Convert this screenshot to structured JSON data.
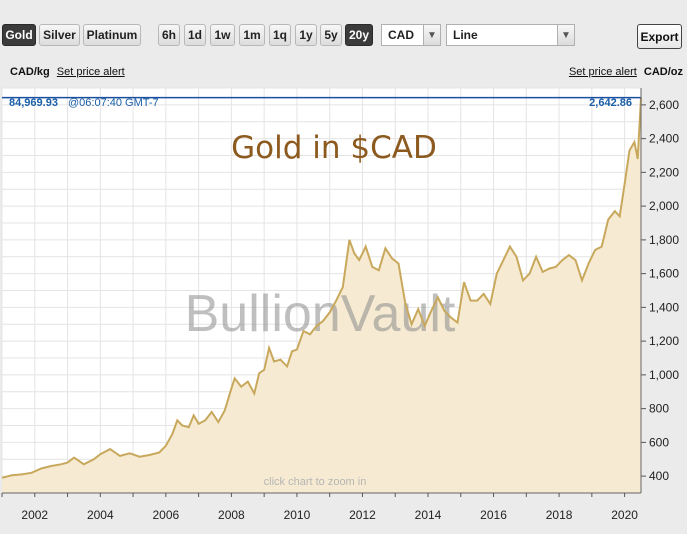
{
  "toolbar": {
    "metals": [
      {
        "label": "Gold",
        "active": true
      },
      {
        "label": "Silver",
        "active": false
      },
      {
        "label": "Platinum",
        "active": false
      }
    ],
    "ranges": [
      {
        "label": "6h",
        "active": false
      },
      {
        "label": "1d",
        "active": false
      },
      {
        "label": "1w",
        "active": false
      },
      {
        "label": "1m",
        "active": false
      },
      {
        "label": "1q",
        "active": false
      },
      {
        "label": "1y",
        "active": false
      },
      {
        "label": "5y",
        "active": false
      },
      {
        "label": "20y",
        "active": true
      }
    ],
    "currency": "CAD",
    "chart_style": "Line",
    "export_label": "Export"
  },
  "units": {
    "left_unit": "CAD/kg",
    "right_unit": "CAD/oz",
    "alert_left": "Set price alert",
    "alert_right": "Set price alert"
  },
  "readout": {
    "kg_price": "84,969.93",
    "time": "@06:07:40 GMT-7",
    "oz_price": "2,642.86"
  },
  "watermark": "BullionVault",
  "zoom_hint": "click chart to zoom in",
  "colors": {
    "line": "#c8a85c",
    "fill": "#f6ebd2",
    "title": "#8c5a1e",
    "current_line": "#1a4fa0",
    "readout": "#1a5fa8"
  },
  "chart_data": {
    "type": "area",
    "title": "Gold in $CAD",
    "xlim": [
      2001.0,
      2020.5
    ],
    "ylim": [
      300,
      2700
    ],
    "yticks": [
      400,
      600,
      800,
      1000,
      1200,
      1400,
      1600,
      1800,
      2000,
      2200,
      2400,
      2600
    ],
    "ytick_labels": [
      "400",
      "600",
      "800",
      "1,000",
      "1,200",
      "1,400",
      "1,600",
      "1,800",
      "2,000",
      "2,200",
      "2,400",
      "2,600"
    ],
    "xticks": [
      2002,
      2004,
      2006,
      2008,
      2010,
      2012,
      2014,
      2016,
      2018,
      2020
    ],
    "xtick_labels": [
      "2002",
      "2004",
      "2006",
      "2008",
      "2010",
      "2012",
      "2014",
      "2016",
      "2018",
      "2020"
    ],
    "current_value": 2642.86,
    "grid": true,
    "series": [
      {
        "values": [
          [
            2001.0,
            390
          ],
          [
            2001.3,
            405
          ],
          [
            2001.6,
            410
          ],
          [
            2001.9,
            420
          ],
          [
            2002.2,
            445
          ],
          [
            2002.5,
            460
          ],
          [
            2002.8,
            470
          ],
          [
            2003.0,
            480
          ],
          [
            2003.2,
            510
          ],
          [
            2003.5,
            470
          ],
          [
            2003.8,
            500
          ],
          [
            2004.0,
            530
          ],
          [
            2004.3,
            560
          ],
          [
            2004.6,
            520
          ],
          [
            2004.9,
            535
          ],
          [
            2005.2,
            515
          ],
          [
            2005.5,
            525
          ],
          [
            2005.8,
            540
          ],
          [
            2006.0,
            580
          ],
          [
            2006.2,
            650
          ],
          [
            2006.35,
            730
          ],
          [
            2006.5,
            700
          ],
          [
            2006.7,
            690
          ],
          [
            2006.85,
            760
          ],
          [
            2007.0,
            710
          ],
          [
            2007.2,
            730
          ],
          [
            2007.4,
            780
          ],
          [
            2007.6,
            720
          ],
          [
            2007.8,
            790
          ],
          [
            2008.0,
            920
          ],
          [
            2008.1,
            980
          ],
          [
            2008.3,
            930
          ],
          [
            2008.5,
            960
          ],
          [
            2008.7,
            890
          ],
          [
            2008.85,
            1010
          ],
          [
            2009.0,
            1030
          ],
          [
            2009.15,
            1160
          ],
          [
            2009.3,
            1080
          ],
          [
            2009.5,
            1090
          ],
          [
            2009.7,
            1050
          ],
          [
            2009.85,
            1140
          ],
          [
            2010.0,
            1150
          ],
          [
            2010.2,
            1260
          ],
          [
            2010.4,
            1240
          ],
          [
            2010.6,
            1290
          ],
          [
            2010.8,
            1320
          ],
          [
            2011.0,
            1370
          ],
          [
            2011.2,
            1440
          ],
          [
            2011.4,
            1520
          ],
          [
            2011.6,
            1800
          ],
          [
            2011.75,
            1720
          ],
          [
            2011.9,
            1680
          ],
          [
            2012.1,
            1760
          ],
          [
            2012.3,
            1640
          ],
          [
            2012.5,
            1620
          ],
          [
            2012.7,
            1750
          ],
          [
            2012.9,
            1690
          ],
          [
            2013.1,
            1660
          ],
          [
            2013.3,
            1430
          ],
          [
            2013.5,
            1300
          ],
          [
            2013.7,
            1390
          ],
          [
            2013.9,
            1290
          ],
          [
            2014.1,
            1380
          ],
          [
            2014.3,
            1460
          ],
          [
            2014.5,
            1380
          ],
          [
            2014.7,
            1340
          ],
          [
            2014.9,
            1310
          ],
          [
            2015.1,
            1550
          ],
          [
            2015.3,
            1440
          ],
          [
            2015.5,
            1440
          ],
          [
            2015.7,
            1480
          ],
          [
            2015.9,
            1420
          ],
          [
            2016.1,
            1600
          ],
          [
            2016.3,
            1680
          ],
          [
            2016.5,
            1760
          ],
          [
            2016.7,
            1700
          ],
          [
            2016.9,
            1560
          ],
          [
            2017.1,
            1600
          ],
          [
            2017.3,
            1700
          ],
          [
            2017.5,
            1610
          ],
          [
            2017.7,
            1630
          ],
          [
            2017.9,
            1640
          ],
          [
            2018.1,
            1680
          ],
          [
            2018.3,
            1710
          ],
          [
            2018.5,
            1680
          ],
          [
            2018.7,
            1560
          ],
          [
            2018.9,
            1660
          ],
          [
            2019.1,
            1740
          ],
          [
            2019.3,
            1760
          ],
          [
            2019.5,
            1920
          ],
          [
            2019.7,
            1970
          ],
          [
            2019.85,
            1940
          ],
          [
            2020.0,
            2130
          ],
          [
            2020.15,
            2330
          ],
          [
            2020.3,
            2380
          ],
          [
            2020.4,
            2280
          ],
          [
            2020.5,
            2643
          ]
        ]
      }
    ]
  }
}
